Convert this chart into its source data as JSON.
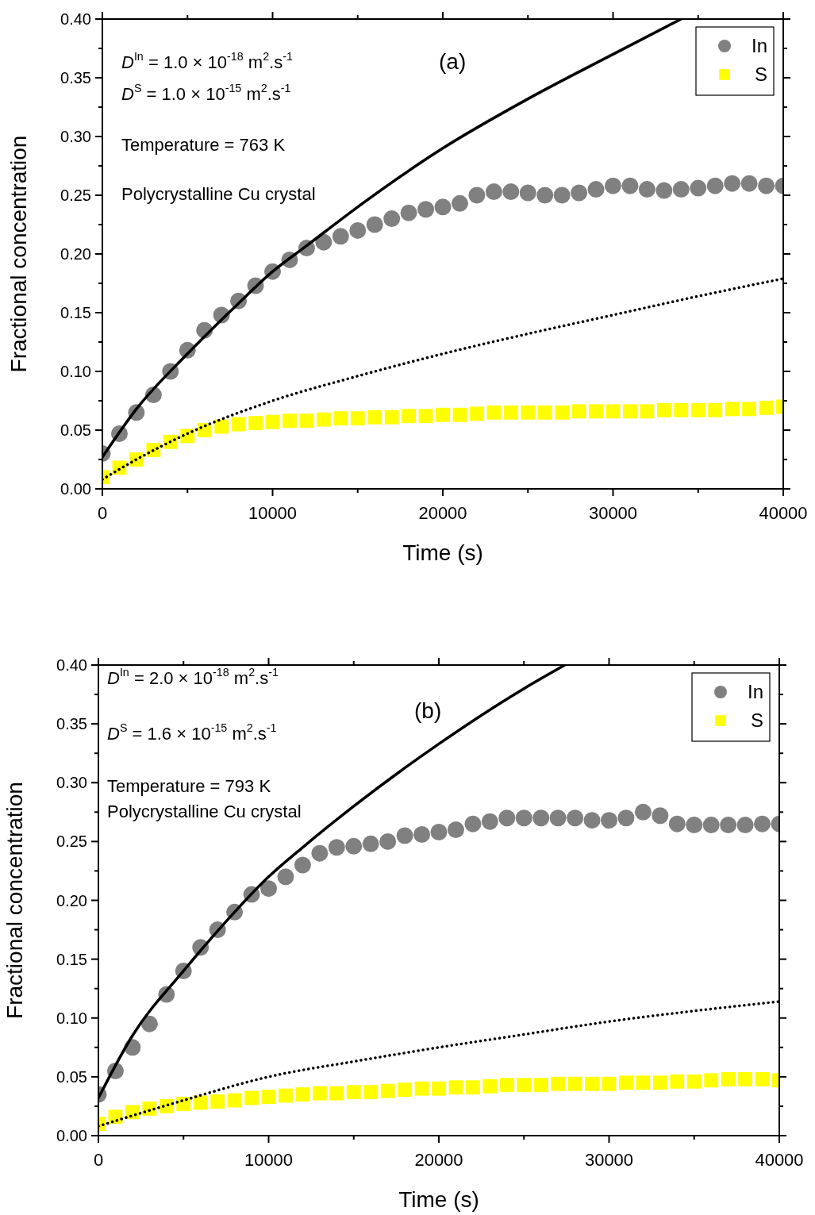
{
  "chart_data": [
    {
      "type": "scatter",
      "xlabel": "Time (s)",
      "ylabel": "Fractional concentration",
      "xlim": [
        0,
        40000
      ],
      "ylim": [
        0,
        0.4
      ],
      "xticks": [
        0,
        10000,
        20000,
        30000,
        40000
      ],
      "yticks": [
        {
          "value": 0,
          "label": "0.00"
        },
        {
          "value": 0.05,
          "label": "0.05"
        },
        {
          "value": 0.1,
          "label": "0.10"
        },
        {
          "value": 0.15,
          "label": "0.15"
        },
        {
          "value": 0.2,
          "label": "0.20"
        },
        {
          "value": 0.25,
          "label": "0.25"
        },
        {
          "value": 0.3,
          "label": "0.30"
        },
        {
          "value": 0.35,
          "label": "0.35"
        },
        {
          "value": 0.4,
          "label": "0.40"
        }
      ],
      "legend": "top right",
      "grid": false,
      "annotations": [
        "D$^{In}$ = 1.0 × 10$^{-18}$ m$^{2}$.s$^{-1}$",
        "D$^{S}$ = 1.0 × 10$^{-15}$ m$^{2}$.s$^{-1}$",
        "Temperature = 763 K",
        "Polycrystalline Cu crystal",
        "(a)"
      ],
      "x": [
        0,
        1000,
        2000,
        3000,
        4000,
        5000,
        6000,
        7000,
        8000,
        9000,
        10000,
        11000,
        12000,
        13000,
        14000,
        15000,
        16000,
        17000,
        18000,
        19000,
        20000,
        21000,
        22000,
        23000,
        24000,
        25000,
        26000,
        27000,
        28000,
        29000,
        30000,
        31000,
        32000,
        33000,
        34000,
        35000,
        36000,
        37000,
        38000,
        39000,
        40000
      ],
      "series": [
        {
          "name": "In",
          "marker": "circle",
          "color": "#808080",
          "values": [
            0.03,
            0.047,
            0.065,
            0.08,
            0.1,
            0.118,
            0.135,
            0.148,
            0.16,
            0.173,
            0.185,
            0.195,
            0.205,
            0.21,
            0.215,
            0.22,
            0.225,
            0.23,
            0.235,
            0.238,
            0.24,
            0.243,
            0.25,
            0.253,
            0.253,
            0.252,
            0.25,
            0.25,
            0.252,
            0.255,
            0.258,
            0.258,
            0.255,
            0.254,
            0.255,
            0.256,
            0.258,
            0.26,
            0.26,
            0.258,
            0.258
          ]
        },
        {
          "name": "S",
          "marker": "square",
          "color": "#ffff00",
          "values": [
            0.01,
            0.018,
            0.025,
            0.033,
            0.04,
            0.045,
            0.05,
            0.053,
            0.055,
            0.056,
            0.057,
            0.058,
            0.058,
            0.059,
            0.06,
            0.06,
            0.061,
            0.061,
            0.062,
            0.062,
            0.063,
            0.063,
            0.064,
            0.065,
            0.065,
            0.065,
            0.065,
            0.065,
            0.066,
            0.066,
            0.066,
            0.066,
            0.066,
            0.067,
            0.067,
            0.067,
            0.067,
            0.068,
            0.068,
            0.069,
            0.07
          ]
        },
        {
          "type": "line",
          "line_style": "solid",
          "color": "#000000",
          "x": [
            0,
            2000,
            5000,
            8000,
            10000,
            12000,
            15000,
            20000,
            25000,
            30000,
            34000
          ],
          "values": [
            0.027,
            0.068,
            0.115,
            0.158,
            0.185,
            0.207,
            0.24,
            0.29,
            0.332,
            0.37,
            0.4
          ]
        },
        {
          "type": "line",
          "line_style": "dotted",
          "color": "#000000",
          "x": [
            0,
            2000,
            5000,
            10000,
            15000,
            20000,
            25000,
            30000,
            35000,
            40000
          ],
          "values": [
            0.008,
            0.025,
            0.047,
            0.075,
            0.096,
            0.115,
            0.132,
            0.148,
            0.164,
            0.179
          ]
        }
      ]
    },
    {
      "type": "scatter",
      "xlabel": "Time (s)",
      "ylabel": "Fractional concentration",
      "xlim": [
        0,
        40000
      ],
      "ylim": [
        0,
        0.4
      ],
      "xticks": [
        0,
        10000,
        20000,
        30000,
        40000
      ],
      "yticks": [
        {
          "value": 0,
          "label": "0.00"
        },
        {
          "value": 0.05,
          "label": "0.05"
        },
        {
          "value": 0.1,
          "label": "0.10"
        },
        {
          "value": 0.15,
          "label": "0.15"
        },
        {
          "value": 0.2,
          "label": "0.20"
        },
        {
          "value": 0.25,
          "label": "0.25"
        },
        {
          "value": 0.3,
          "label": "0.30"
        },
        {
          "value": 0.35,
          "label": "0.35"
        },
        {
          "value": 0.4,
          "label": "0.40"
        }
      ],
      "legend": "top right",
      "grid": false,
      "annotations": [
        "D$^{In}$ = 2.0 × 10$^{-18}$ m$^{2}$.s$^{-1}$",
        "D$^{S}$ = 1.6 × 10$^{-15}$ m$^{2}$.s$^{-1}$",
        "Temperature = 793 K",
        "Polycrystalline Cu crystal",
        "(b)"
      ],
      "x": [
        0,
        1000,
        2000,
        3000,
        4000,
        5000,
        6000,
        7000,
        8000,
        9000,
        10000,
        11000,
        12000,
        13000,
        14000,
        15000,
        16000,
        17000,
        18000,
        19000,
        20000,
        21000,
        22000,
        23000,
        24000,
        25000,
        26000,
        27000,
        28000,
        29000,
        30000,
        31000,
        32000,
        33000,
        34000,
        35000,
        36000,
        37000,
        38000,
        39000,
        40000
      ],
      "series": [
        {
          "name": "In",
          "marker": "circle",
          "color": "#808080",
          "values": [
            0.035,
            0.055,
            0.075,
            0.095,
            0.12,
            0.14,
            0.16,
            0.175,
            0.19,
            0.205,
            0.21,
            0.22,
            0.23,
            0.24,
            0.245,
            0.246,
            0.248,
            0.25,
            0.255,
            0.256,
            0.258,
            0.26,
            0.265,
            0.267,
            0.27,
            0.27,
            0.27,
            0.27,
            0.27,
            0.268,
            0.268,
            0.27,
            0.275,
            0.272,
            0.265,
            0.264,
            0.264,
            0.264,
            0.264,
            0.265,
            0.265
          ]
        },
        {
          "name": "S",
          "marker": "square",
          "color": "#ffff00",
          "values": [
            0.01,
            0.016,
            0.02,
            0.023,
            0.025,
            0.027,
            0.028,
            0.029,
            0.03,
            0.032,
            0.033,
            0.034,
            0.035,
            0.036,
            0.036,
            0.037,
            0.037,
            0.038,
            0.039,
            0.04,
            0.04,
            0.041,
            0.041,
            0.042,
            0.043,
            0.043,
            0.043,
            0.044,
            0.044,
            0.044,
            0.044,
            0.045,
            0.045,
            0.045,
            0.046,
            0.046,
            0.047,
            0.048,
            0.048,
            0.048,
            0.047
          ]
        },
        {
          "type": "line",
          "line_style": "solid",
          "color": "#000000",
          "x": [
            0,
            2000,
            5000,
            8000,
            10000,
            12000,
            15000,
            20000,
            25000,
            27400
          ],
          "values": [
            0.032,
            0.085,
            0.14,
            0.19,
            0.22,
            0.245,
            0.28,
            0.333,
            0.38,
            0.4
          ]
        },
        {
          "type": "line",
          "line_style": "dotted",
          "color": "#000000",
          "x": [
            0,
            2000,
            5000,
            10000,
            15000,
            20000,
            25000,
            30000,
            35000,
            40000
          ],
          "values": [
            0.008,
            0.017,
            0.03,
            0.05,
            0.063,
            0.075,
            0.086,
            0.097,
            0.106,
            0.114
          ]
        }
      ]
    }
  ]
}
